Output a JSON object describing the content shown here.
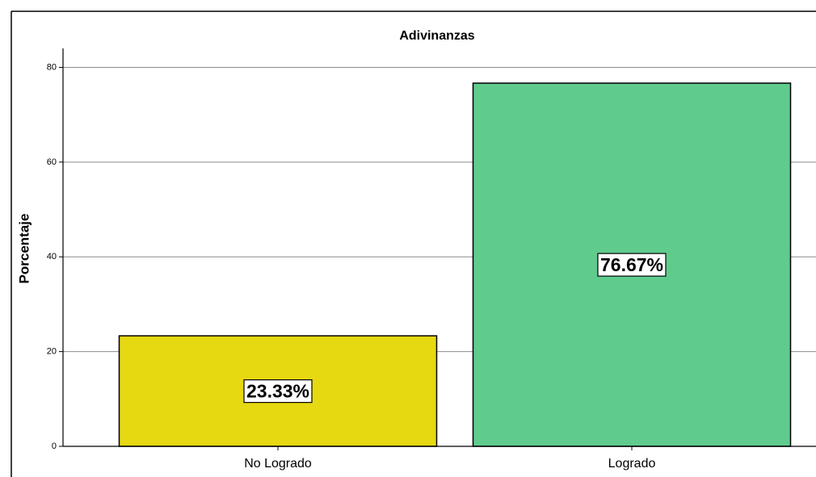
{
  "chart_data": {
    "type": "bar",
    "title": "Adivinanzas",
    "y_label": "Porcentaje",
    "categories": [
      "No Logrado",
      "Logrado"
    ],
    "values": [
      23.33,
      76.67
    ],
    "value_labels": [
      "23.33%",
      "76.67%"
    ],
    "colors": [
      "#e6d811",
      "#5fcb8c"
    ],
    "ylim": [
      0,
      84
    ],
    "yticks": [
      0,
      20,
      40,
      60,
      80
    ],
    "grid": true
  }
}
